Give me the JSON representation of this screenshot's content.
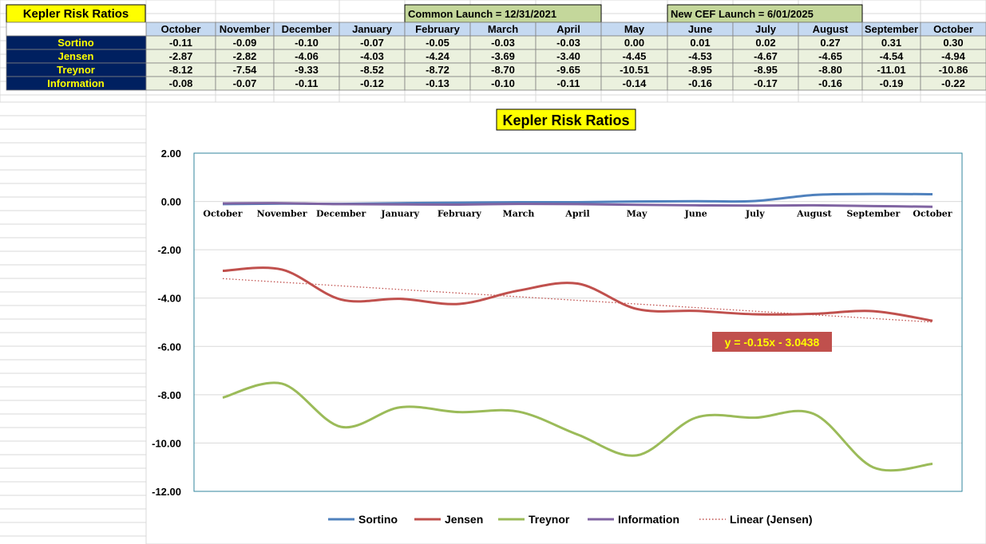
{
  "sheet": {
    "title": "Kepler Risk Ratios",
    "notes": [
      "Common Launch = 12/31/2021",
      "New CEF Launch = 6/01/2025"
    ],
    "months": [
      "October",
      "November",
      "December",
      "January",
      "February",
      "March",
      "April",
      "May",
      "June",
      "July",
      "August",
      "September",
      "October"
    ],
    "rows": [
      {
        "label": "Sortino",
        "values": [
          "-0.11",
          "-0.09",
          "-0.10",
          "-0.07",
          "-0.05",
          "-0.03",
          "-0.03",
          "0.00",
          "0.01",
          "0.02",
          "0.27",
          "0.31",
          "0.30"
        ]
      },
      {
        "label": "Jensen",
        "values": [
          "-2.87",
          "-2.82",
          "-4.06",
          "-4.03",
          "-4.24",
          "-3.69",
          "-3.40",
          "-4.45",
          "-4.53",
          "-4.67",
          "-4.65",
          "-4.54",
          "-4.94"
        ]
      },
      {
        "label": "Treynor",
        "values": [
          "-8.12",
          "-7.54",
          "-9.33",
          "-8.52",
          "-8.72",
          "-8.70",
          "-9.65",
          "-10.51",
          "-8.95",
          "-8.95",
          "-8.80",
          "-11.01",
          "-10.86"
        ]
      },
      {
        "label": "Information",
        "values": [
          "-0.08",
          "-0.07",
          "-0.11",
          "-0.12",
          "-0.13",
          "-0.10",
          "-0.11",
          "-0.14",
          "-0.16",
          "-0.17",
          "-0.16",
          "-0.19",
          "-0.22"
        ]
      }
    ]
  },
  "colors": {
    "navy": "#002060",
    "yellow": "#ffff00",
    "green_note": "#c4d79b",
    "header_blue": "#c5d9f1",
    "cell_green": "#ebf1de",
    "grid": "#d9d9d9",
    "plot_border": "#31859c",
    "trend_label_bg": "#c0504d"
  },
  "chart_data": {
    "type": "line",
    "title": "Kepler Risk Ratios",
    "categories": [
      "October",
      "November",
      "December",
      "January",
      "February",
      "March",
      "April",
      "May",
      "June",
      "July",
      "August",
      "September",
      "October"
    ],
    "ylim": [
      -12,
      2
    ],
    "yticks": [
      "2.00",
      "0.00",
      "-2.00",
      "-4.00",
      "-6.00",
      "-8.00",
      "-10.00",
      "-12.00"
    ],
    "grid": true,
    "legend_position": "bottom",
    "series": [
      {
        "name": "Sortino",
        "color": "#4f81bd",
        "values": [
          -0.11,
          -0.09,
          -0.1,
          -0.07,
          -0.05,
          -0.03,
          -0.03,
          0.0,
          0.01,
          0.02,
          0.27,
          0.31,
          0.3
        ]
      },
      {
        "name": "Jensen",
        "color": "#c0504d",
        "values": [
          -2.87,
          -2.82,
          -4.06,
          -4.03,
          -4.24,
          -3.69,
          -3.4,
          -4.45,
          -4.53,
          -4.67,
          -4.65,
          -4.54,
          -4.94
        ]
      },
      {
        "name": "Treynor",
        "color": "#9bbb59",
        "values": [
          -8.12,
          -7.54,
          -9.33,
          -8.52,
          -8.72,
          -8.7,
          -9.65,
          -10.51,
          -8.95,
          -8.95,
          -8.8,
          -11.01,
          -10.86
        ]
      },
      {
        "name": "Information",
        "color": "#8064a2",
        "values": [
          -0.08,
          -0.07,
          -0.11,
          -0.12,
          -0.13,
          -0.1,
          -0.11,
          -0.14,
          -0.16,
          -0.17,
          -0.16,
          -0.19,
          -0.22
        ]
      }
    ],
    "trendline": {
      "name": "Linear (Jensen)",
      "color": "#c0504d",
      "equation": "y = -0.15x - 3.0438",
      "slope": -0.15,
      "intercept": -3.0438
    }
  }
}
